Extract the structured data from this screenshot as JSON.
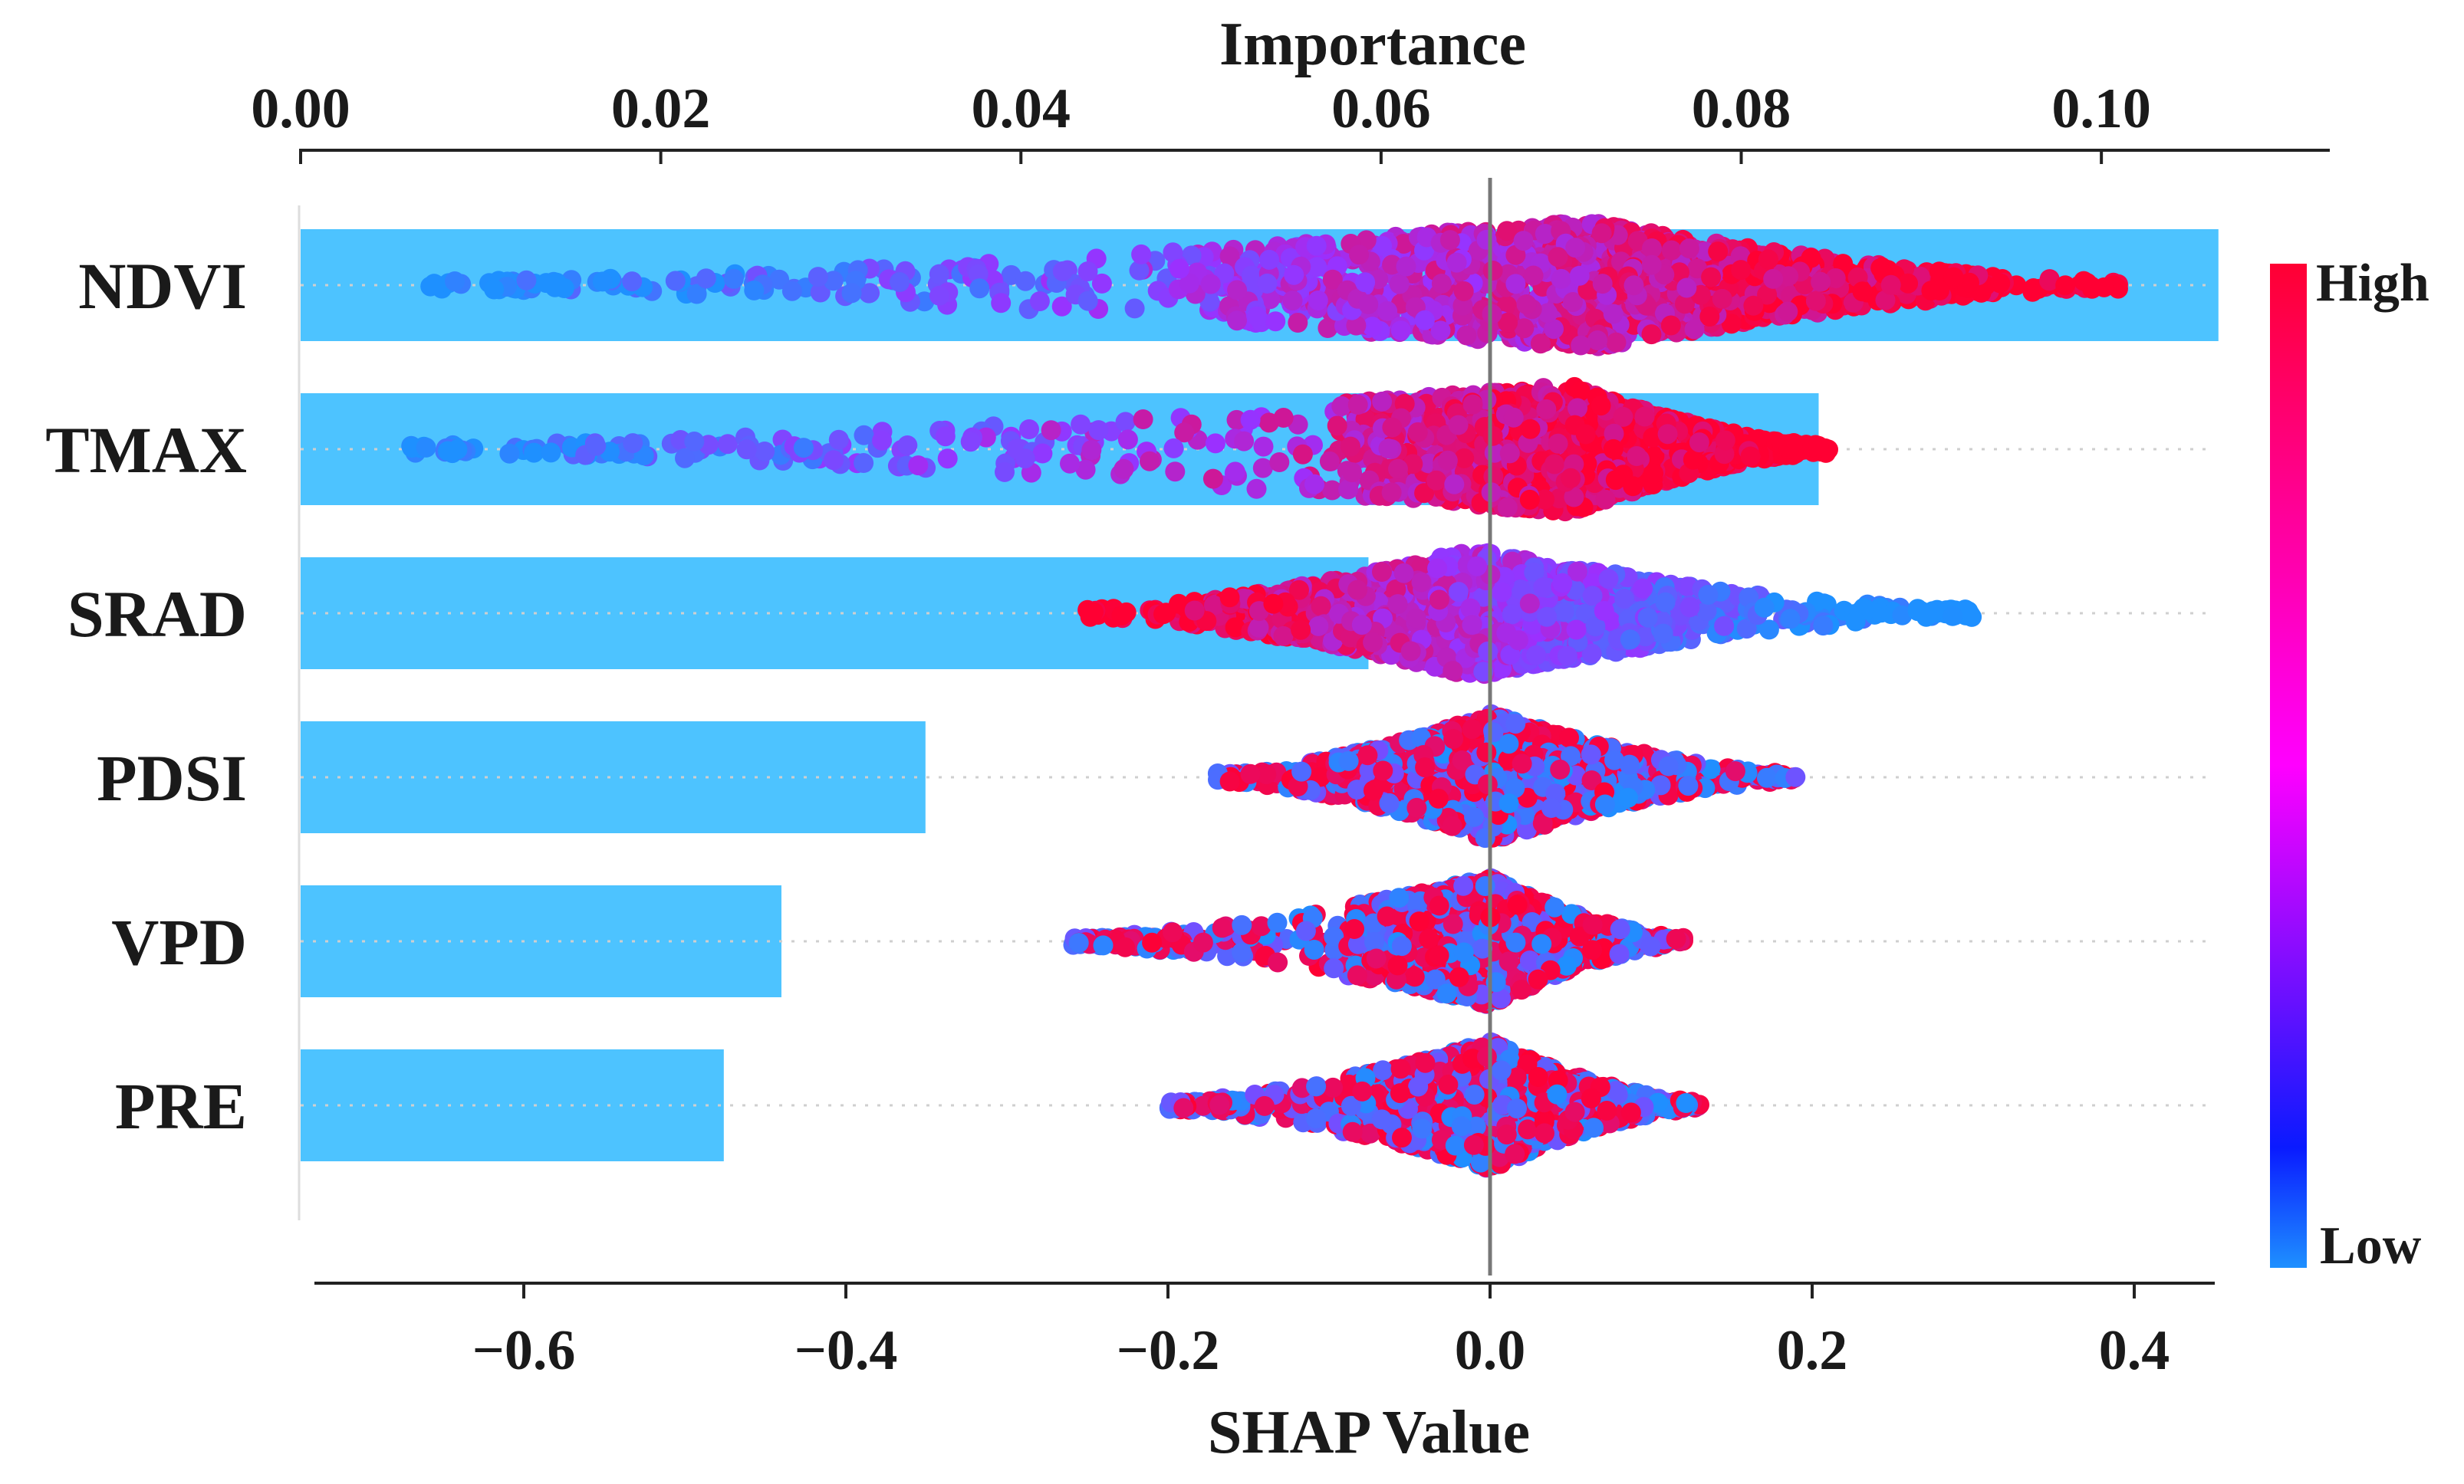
{
  "chart_data": {
    "type": "scatter",
    "subtype": "shap-beeswarm-with-importance-bars",
    "top_axis": {
      "title": "Importance",
      "xlim": [
        0.0,
        0.108
      ],
      "ticks": [
        0.0,
        0.02,
        0.04,
        0.06,
        0.08,
        0.1
      ],
      "tick_labels": [
        "0.00",
        "0.02",
        "0.04",
        "0.06",
        "0.08",
        "0.10"
      ]
    },
    "bottom_axis": {
      "title": "SHAP Value",
      "xlim": [
        -0.73,
        0.45
      ],
      "ticks": [
        -0.6,
        -0.4,
        -0.2,
        0.0,
        0.2,
        0.4
      ],
      "tick_labels": [
        "−0.6",
        "−0.4",
        "−0.2",
        "0.0",
        "0.2",
        "0.4"
      ]
    },
    "zero_line": 0.0,
    "colorbar": {
      "high_label": "High",
      "low_label": "Low",
      "high_color": "#ff0033",
      "mid_color": "#ff00ff",
      "low_color": "#0a1aff",
      "bottom_color": "#1e90ff"
    },
    "bar_color": "#4dc3ff",
    "features": [
      {
        "name": "NDVI",
        "importance": 0.1065,
        "shap_min": -0.66,
        "shap_max": 0.39,
        "peak": 0.06,
        "high_side": "positive"
      },
      {
        "name": "TMAX",
        "importance": 0.0843,
        "shap_min": -0.67,
        "shap_max": 0.21,
        "peak": 0.05,
        "high_side": "positive"
      },
      {
        "name": "SRAD",
        "importance": 0.0593,
        "shap_min": -0.25,
        "shap_max": 0.3,
        "peak": -0.01,
        "high_side": "negative"
      },
      {
        "name": "PDSI",
        "importance": 0.0347,
        "shap_min": -0.17,
        "shap_max": 0.19,
        "peak": 0.0,
        "high_side": "mixed"
      },
      {
        "name": "VPD",
        "importance": 0.0267,
        "shap_min": -0.26,
        "shap_max": 0.12,
        "peak": 0.0,
        "high_side": "mixed"
      },
      {
        "name": "PRE",
        "importance": 0.0235,
        "shap_min": -0.2,
        "shap_max": 0.13,
        "peak": 0.0,
        "high_side": "mixed"
      }
    ]
  }
}
